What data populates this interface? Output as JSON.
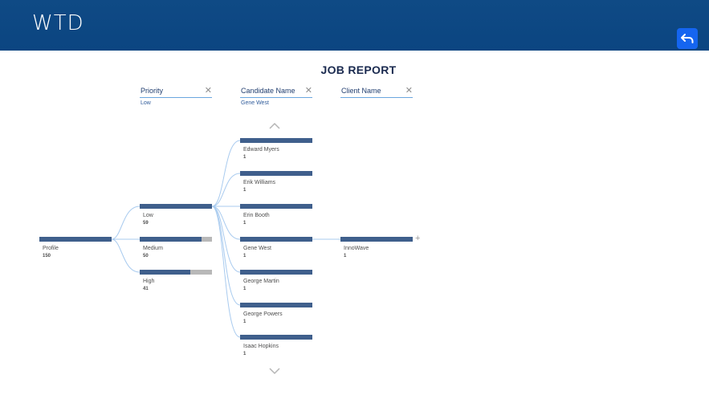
{
  "app": {
    "logo": "WTD"
  },
  "report": {
    "title": "JOB REPORT"
  },
  "filters": [
    {
      "label": "Priority",
      "value": "Low"
    },
    {
      "label": "Candidate Name",
      "value": "Gene West"
    },
    {
      "label": "Client Name",
      "value": ""
    }
  ],
  "tree": {
    "root": {
      "label": "Profile",
      "value": "150",
      "fill": 1.0
    },
    "priority": [
      {
        "label": "Low",
        "value": "59",
        "fill": 1.0
      },
      {
        "label": "Medium",
        "value": "50",
        "fill": 0.85
      },
      {
        "label": "High",
        "value": "41",
        "fill": 0.7
      }
    ],
    "candidates": [
      {
        "label": "Edward Myers",
        "value": "1"
      },
      {
        "label": "Erik Williams",
        "value": "1"
      },
      {
        "label": "Erin Booth",
        "value": "1"
      },
      {
        "label": "Gene West",
        "value": "1"
      },
      {
        "label": "George Martin",
        "value": "1"
      },
      {
        "label": "George Powers",
        "value": "1"
      },
      {
        "label": "Isaac Hopkins",
        "value": "1"
      }
    ],
    "clients": [
      {
        "label": "InnoWave",
        "value": "1"
      }
    ]
  },
  "colors": {
    "header": "#0b4581",
    "bar": "#3f5f8c",
    "bar_remainder": "#b8b8b8",
    "link": "#a9cbef",
    "accent": "#1565f0"
  },
  "icons": {
    "back": "return-arrow-icon",
    "close": "close-icon",
    "up": "chevron-up-icon",
    "down": "chevron-down-icon",
    "expand": "plus-icon"
  }
}
